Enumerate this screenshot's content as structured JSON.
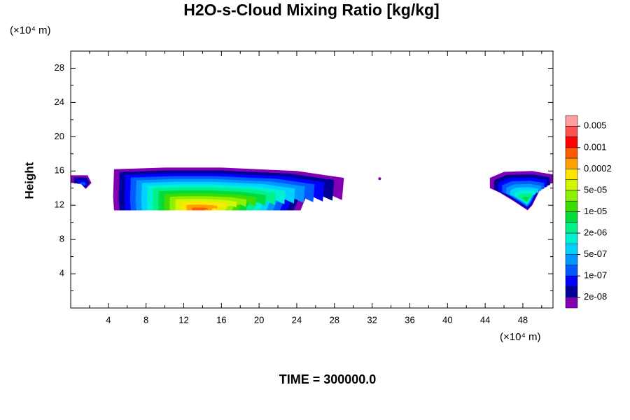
{
  "chart_data": {
    "type": "contour",
    "title": "H2O-s-Cloud Mixing Ratio [kg/kg]",
    "y_unit": "(×10⁴ m)",
    "x_unit": "(×10⁴ m)",
    "y_label": "Height",
    "footer": "TIME = 300000.0",
    "xlim": [
      0,
      51.2
    ],
    "xticks": [
      4,
      8,
      12,
      16,
      20,
      24,
      28,
      32,
      36,
      40,
      44,
      48
    ],
    "ylim": [
      0,
      30
    ],
    "yticks": [
      4,
      8,
      12,
      16,
      20,
      24,
      28
    ],
    "colorbar": {
      "colors": [
        "#ff9e9e",
        "#ff5050",
        "#ff0000",
        "#ff5a00",
        "#ffa000",
        "#ffe600",
        "#d2f500",
        "#8cf000",
        "#3cdc00",
        "#00dc3c",
        "#00f08c",
        "#00f0d2",
        "#00d2ff",
        "#0096ff",
        "#005aff",
        "#0000ff",
        "#000096",
        "#8200b4"
      ],
      "ticks": [
        0.005,
        0.001,
        0.0002,
        {
          "value": 5e-05,
          "label": "5e-05"
        },
        {
          "value": 1e-05,
          "label": "1e-05"
        },
        {
          "value": 2e-06,
          "label": "2e-06"
        },
        {
          "value": 5e-07,
          "label": "5e-07"
        },
        {
          "value": 1e-07,
          "label": "1e-07"
        },
        {
          "value": 2e-08,
          "label": "2e-08"
        }
      ]
    }
  }
}
